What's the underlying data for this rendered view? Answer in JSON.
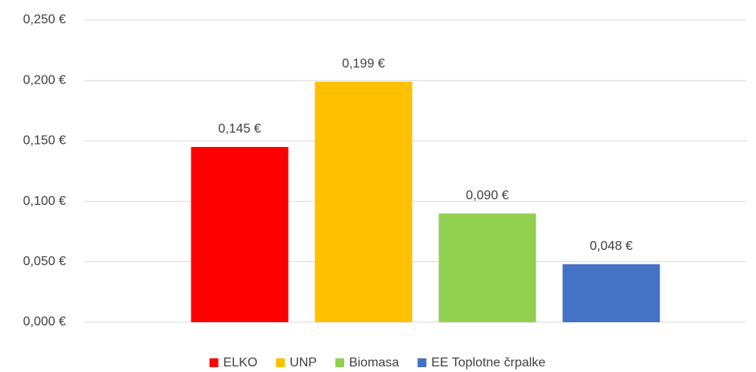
{
  "chart_data": {
    "type": "bar",
    "categories": [
      null
    ],
    "series": [
      {
        "name": "ELKO",
        "color": "#ff0000",
        "values": [
          0.145
        ],
        "value_labels": [
          "0,145 €"
        ]
      },
      {
        "name": "UNP",
        "color": "#ffc000",
        "values": [
          0.199
        ],
        "value_labels": [
          "0,199 €"
        ]
      },
      {
        "name": "Biomasa",
        "color": "#92d050",
        "values": [
          0.09
        ],
        "value_labels": [
          "0,090 €"
        ]
      },
      {
        "name": "EE Toplotne črpalke",
        "color": "#4472c4",
        "values": [
          0.048
        ],
        "value_labels": [
          "0,048 €"
        ]
      }
    ],
    "ylim": [
      0,
      0.25
    ],
    "yticks": [
      {
        "value": 0,
        "label": "0,000 €"
      },
      {
        "value": 0.05,
        "label": "0,050 €"
      },
      {
        "value": 0.1,
        "label": "0,100 €"
      },
      {
        "value": 0.15,
        "label": "0,150 €"
      },
      {
        "value": 0.2,
        "label": "0,200 €"
      },
      {
        "value": 0.25,
        "label": "0,250 €"
      }
    ],
    "grid": true,
    "legend": "bottom"
  }
}
